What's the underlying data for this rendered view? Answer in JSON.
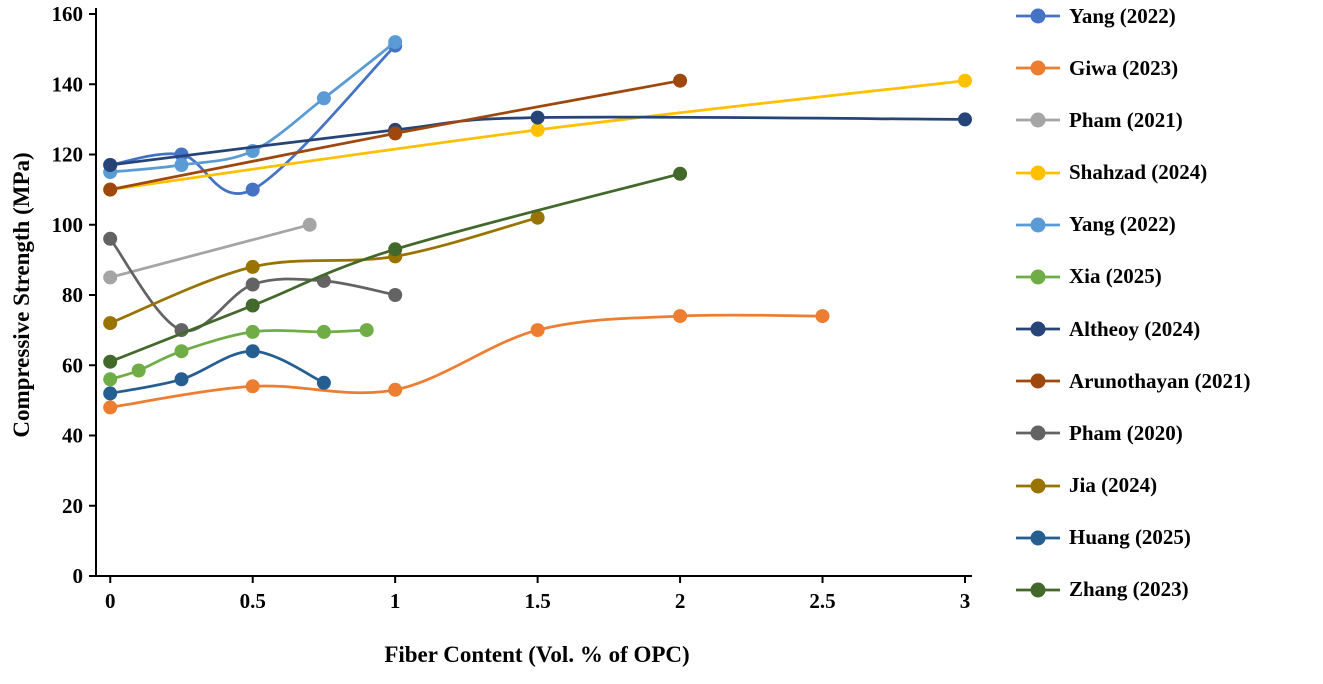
{
  "chart_data": {
    "type": "line",
    "title": "",
    "xlabel": "Fiber Content (Vol. % of OPC)",
    "ylabel": "Compressive Strength (MPa)",
    "xlim": [
      0,
      3
    ],
    "ylim": [
      0,
      160
    ],
    "x_ticks": [
      "0",
      "0.5",
      "1",
      "1.5",
      "2",
      "2.5",
      "3"
    ],
    "y_ticks": [
      "0",
      "20",
      "40",
      "60",
      "80",
      "100",
      "120",
      "140",
      "160"
    ],
    "grid": false,
    "legend_position": "right",
    "axis_color": "#000000",
    "series": [
      {
        "name": "Yang (2022)",
        "color": "#4472C4",
        "points": [
          [
            0,
            117
          ],
          [
            0.25,
            120
          ],
          [
            0.5,
            110
          ],
          [
            1,
            151
          ]
        ]
      },
      {
        "name": "Giwa (2023)",
        "color": "#ED7D31",
        "points": [
          [
            0,
            48
          ],
          [
            0.5,
            54
          ],
          [
            1,
            53
          ],
          [
            1.5,
            70
          ],
          [
            2,
            74
          ],
          [
            2.5,
            74
          ]
        ]
      },
      {
        "name": "Pham (2021)",
        "color": "#A5A5A5",
        "points": [
          [
            0,
            85
          ],
          [
            0.7,
            100
          ]
        ]
      },
      {
        "name": "Shahzad (2024)",
        "color": "#FFC000",
        "points": [
          [
            0,
            110
          ],
          [
            1.5,
            127
          ],
          [
            3,
            141
          ]
        ]
      },
      {
        "name": "Yang (2022)",
        "color": "#5B9BD5",
        "points": [
          [
            0,
            115
          ],
          [
            0.25,
            117
          ],
          [
            0.5,
            121
          ],
          [
            0.75,
            136
          ],
          [
            1,
            152
          ]
        ]
      },
      {
        "name": "Xia (2025)",
        "color": "#70AD47",
        "points": [
          [
            0,
            56
          ],
          [
            0.1,
            58.5
          ],
          [
            0.25,
            64
          ],
          [
            0.5,
            69.5
          ],
          [
            0.75,
            69.5
          ],
          [
            0.9,
            70
          ]
        ]
      },
      {
        "name": "Altheoy (2024)",
        "color": "#264478",
        "points": [
          [
            0,
            117
          ],
          [
            1,
            127
          ],
          [
            1.5,
            130.5
          ],
          [
            3,
            130
          ]
        ]
      },
      {
        "name": "Arunothayan (2021)",
        "color": "#9E480E",
        "points": [
          [
            0,
            110
          ],
          [
            1,
            126
          ],
          [
            2,
            141
          ]
        ]
      },
      {
        "name": "Pham (2020)",
        "color": "#636363",
        "points": [
          [
            0,
            96
          ],
          [
            0.25,
            70
          ],
          [
            0.5,
            83
          ],
          [
            0.75,
            84
          ],
          [
            1,
            80
          ]
        ]
      },
      {
        "name": "Jia (2024)",
        "color": "#997300",
        "points": [
          [
            0,
            72
          ],
          [
            0.5,
            88
          ],
          [
            1,
            91
          ],
          [
            1.5,
            102
          ]
        ]
      },
      {
        "name": "Huang (2025)",
        "color": "#255E91",
        "points": [
          [
            0,
            52
          ],
          [
            0.25,
            56
          ],
          [
            0.5,
            64
          ],
          [
            0.75,
            55
          ]
        ]
      },
      {
        "name": "Zhang (2023)",
        "color": "#43682B",
        "points": [
          [
            0,
            61
          ],
          [
            0.5,
            77
          ],
          [
            1,
            93
          ],
          [
            2,
            114.5
          ]
        ]
      }
    ]
  }
}
